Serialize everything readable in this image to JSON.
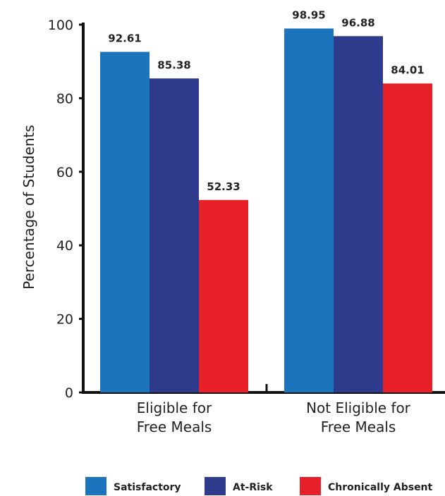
{
  "chart_data": {
    "type": "bar",
    "title": "",
    "xlabel": "",
    "ylabel": "Percentage of Students",
    "ylim": [
      0,
      100
    ],
    "yticks": [
      0,
      20,
      40,
      60,
      80,
      100
    ],
    "categories": [
      "Eligible for Free Meals",
      "Not Eligible for Free Meals"
    ],
    "category_lines": [
      [
        "Eligible for",
        "Free Meals"
      ],
      [
        "Not Eligible for",
        "Free Meals"
      ]
    ],
    "series": [
      {
        "name": "Satisfactory",
        "values": [
          92.61,
          98.95
        ],
        "labels": [
          "92.61",
          "98.95"
        ],
        "color": "#1c75bc"
      },
      {
        "name": "At-Risk",
        "values": [
          85.38,
          96.88
        ],
        "labels": [
          "85.38",
          "96.88"
        ],
        "color": "#2e3a8c"
      },
      {
        "name": "Chronically Absent",
        "values": [
          52.33,
          84.01
        ],
        "labels": [
          "52.33",
          "84.01"
        ],
        "color": "#e8202a"
      }
    ],
    "grid": false,
    "legend_position": "bottom"
  }
}
